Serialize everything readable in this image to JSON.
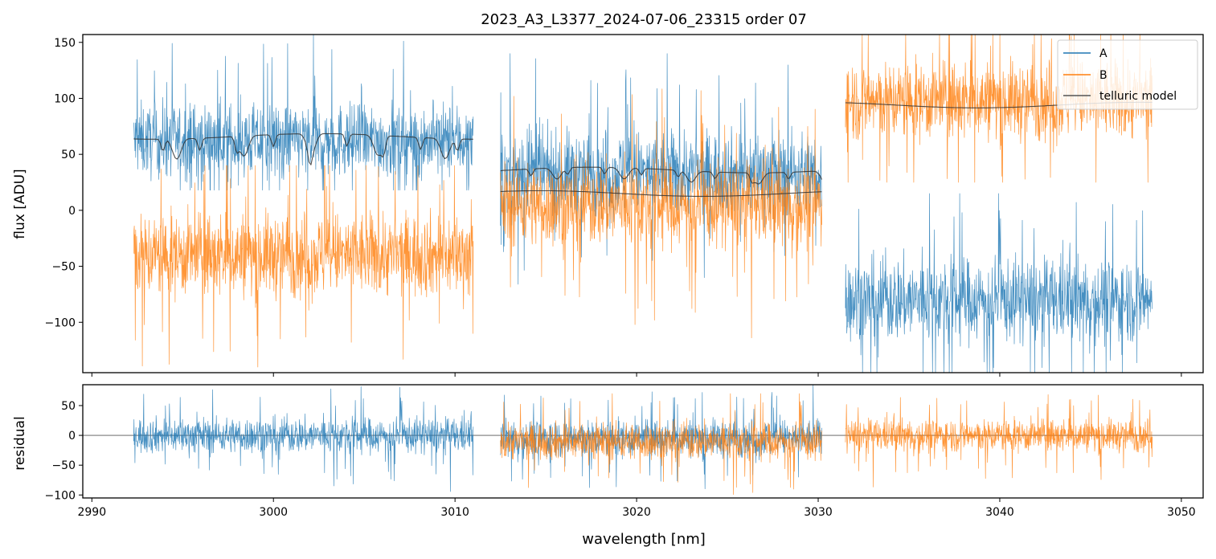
{
  "chart_data": [
    {
      "type": "line",
      "title": "2023_A3_L3377_2024-07-06_23315  order 07",
      "xlabel": "",
      "ylabel": "flux [ADU]",
      "xlim": [
        2989.5,
        3051.2
      ],
      "ylim": [
        -145,
        157
      ],
      "xticks": [
        2990,
        3000,
        3010,
        3020,
        3030,
        3040,
        3050
      ],
      "xtick_labels": [],
      "yticks": [
        -100,
        -50,
        0,
        50,
        100,
        150
      ],
      "ytick_labels": [
        "−100",
        "−50",
        "0",
        "50",
        "100",
        "150"
      ],
      "legend": {
        "position": "top-right",
        "entries": [
          {
            "label": "A",
            "color": "#1f77b4"
          },
          {
            "label": "B",
            "color": "#ff7f0e"
          },
          {
            "label": "telluric model",
            "color": "#555555"
          }
        ]
      },
      "series": [
        {
          "name": "A",
          "color": "#1f77b4",
          "segments": [
            {
              "x": [
                2992.3,
                3011.0
              ],
              "center": 62,
              "spread": 42,
              "max": 157,
              "min": 18
            },
            {
              "x": [
                3012.5,
                3030.2
              ],
              "center": 33,
              "spread": 48,
              "max": 140,
              "min": -110
            },
            {
              "x": [
                3031.5,
                3048.4
              ],
              "center": -80,
              "spread": 48,
              "max": 15,
              "min": -145
            }
          ]
        },
        {
          "name": "B",
          "color": "#ff7f0e",
          "segments": [
            {
              "x": [
                2992.3,
                3011.0
              ],
              "center": -40,
              "spread": 48,
              "max": 40,
              "min": -140
            },
            {
              "x": [
                3012.5,
                3030.2
              ],
              "center": 5,
              "spread": 48,
              "max": 125,
              "min": -145
            },
            {
              "x": [
                3031.5,
                3048.4
              ],
              "center": 98,
              "spread": 45,
              "max": 157,
              "min": 25
            }
          ]
        },
        {
          "name": "telluric model",
          "color": "#333333",
          "segments": [
            {
              "x": [
                2992.3,
                3011.0
              ],
              "base": 66,
              "absorption_depth": 18
            },
            {
              "x": [
                3012.5,
                3030.2
              ],
              "base": 36,
              "absorption_depth": 10
            },
            {
              "x": [
                3012.5,
                3030.2
              ],
              "base": 15,
              "absorption_depth": 0
            },
            {
              "x": [
                3031.5,
                3048.4
              ],
              "base": 94,
              "absorption_depth": 0
            }
          ]
        }
      ]
    },
    {
      "type": "line",
      "title": "",
      "xlabel": "wavelength [nm]",
      "ylabel": "residual",
      "xlim": [
        2989.5,
        3051.2
      ],
      "ylim": [
        -105,
        85
      ],
      "xticks": [
        2990,
        3000,
        3010,
        3020,
        3030,
        3040,
        3050
      ],
      "xtick_labels": [
        "2990",
        "3000",
        "3010",
        "3020",
        "3030",
        "3040",
        "3050"
      ],
      "yticks": [
        -100,
        -50,
        0,
        50
      ],
      "ytick_labels": [
        "−100",
        "−50",
        "0",
        "50"
      ],
      "zero_line": 0,
      "series": [
        {
          "name": "A",
          "color": "#1f77b4",
          "segments": [
            {
              "x": [
                2992.3,
                3011.0
              ],
              "center": 0,
              "spread": 38,
              "max": 85,
              "min": -105
            },
            {
              "x": [
                3012.5,
                3030.2
              ],
              "center": -5,
              "spread": 40,
              "max": 85,
              "min": -105
            }
          ]
        },
        {
          "name": "B",
          "color": "#ff7f0e",
          "segments": [
            {
              "x": [
                3012.5,
                3030.2
              ],
              "center": -10,
              "spread": 40,
              "max": 70,
              "min": -105
            },
            {
              "x": [
                3031.5,
                3048.4
              ],
              "center": 0,
              "spread": 35,
              "max": 85,
              "min": -105
            }
          ]
        }
      ]
    }
  ]
}
